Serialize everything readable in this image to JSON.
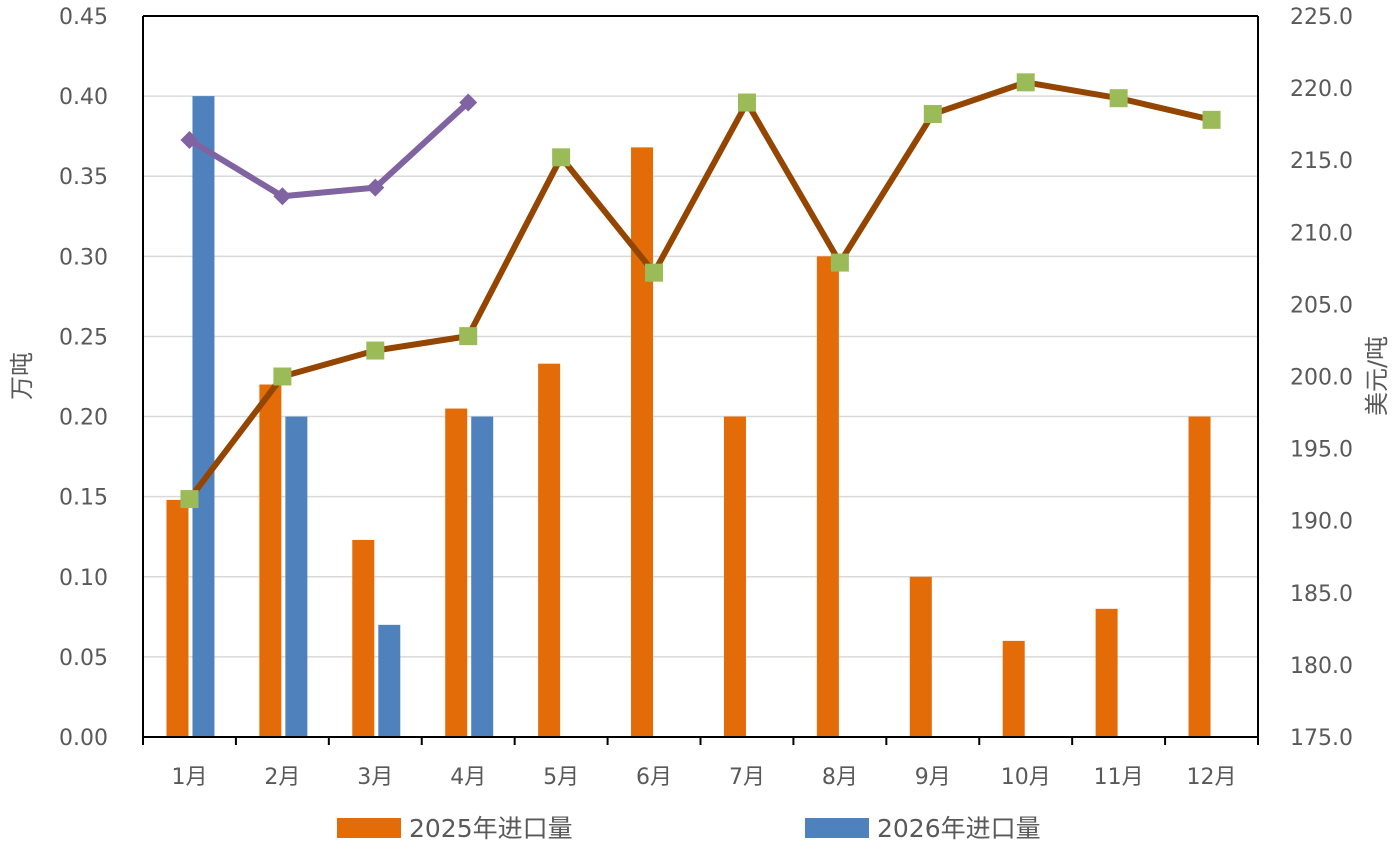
{
  "chart_data": {
    "type": "bar",
    "categories": [
      "1月",
      "2月",
      "3月",
      "4月",
      "5月",
      "6月",
      "7月",
      "8月",
      "9月",
      "10月",
      "11月",
      "12月"
    ],
    "ylabel": "万吨",
    "y2label": "美元/吨",
    "ylim": [
      0,
      0.45
    ],
    "y2lim": [
      175.0,
      225.0
    ],
    "yticks": [
      "0.00",
      "0.05",
      "0.10",
      "0.15",
      "0.20",
      "0.25",
      "0.30",
      "0.35",
      "0.40",
      "0.45"
    ],
    "y2ticks": [
      "175.0",
      "180.0",
      "185.0",
      "190.0",
      "195.0",
      "200.0",
      "205.0",
      "210.0",
      "215.0",
      "220.0",
      "225.0"
    ],
    "grid": true,
    "legend_position": "bottom",
    "series": [
      {
        "name": "2025年进口量",
        "type": "bar",
        "axis": "left",
        "color": "#E36C09",
        "values": [
          0.148,
          0.22,
          0.123,
          0.205,
          0.233,
          0.368,
          0.2,
          0.3,
          0.1,
          0.06,
          0.08,
          0.2
        ]
      },
      {
        "name": "2026年进口量",
        "type": "bar",
        "axis": "left",
        "color": "#4F81BD",
        "values": [
          0.4,
          0.2,
          0.07,
          0.2,
          null,
          null,
          null,
          null,
          null,
          null,
          null,
          null
        ]
      },
      {
        "type": "line",
        "axis": "right",
        "color": "#944600",
        "marker": "square",
        "marker_color": "#9BBB59",
        "values": [
          191.5,
          200.0,
          201.8,
          202.8,
          215.2,
          207.2,
          219.0,
          207.9,
          218.2,
          220.4,
          219.3,
          217.8
        ]
      },
      {
        "type": "line",
        "axis": "right",
        "color": "#8064A2",
        "marker": "diamond",
        "marker_color": "#8064A2",
        "values": [
          216.4,
          212.5,
          213.1,
          219.0,
          null,
          null,
          null,
          null,
          null,
          null,
          null,
          null
        ]
      }
    ]
  }
}
